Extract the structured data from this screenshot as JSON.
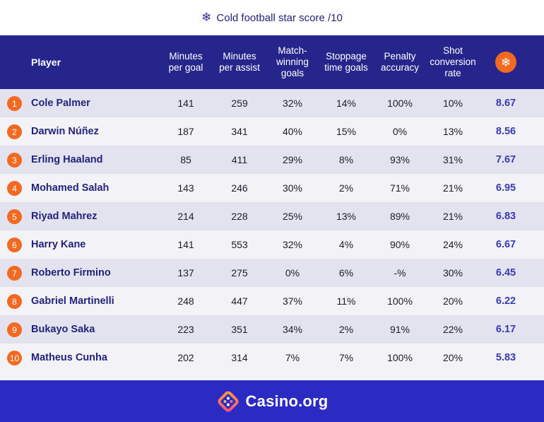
{
  "title": {
    "icon": "snowflake-icon",
    "text": "Cold football star score /10"
  },
  "columns": [
    {
      "key": "player",
      "label": "Player"
    },
    {
      "key": "minutes_per_goal",
      "label": "Minutes per goal"
    },
    {
      "key": "minutes_per_assist",
      "label": "Minutes per assist"
    },
    {
      "key": "match_winning_goals",
      "label": "Match-winning goals"
    },
    {
      "key": "stoppage_time_goals",
      "label": "Stoppage time goals"
    },
    {
      "key": "penalty_accuracy",
      "label": "Penalty accuracy"
    },
    {
      "key": "shot_conversion_rate",
      "label": "Shot conversion rate"
    },
    {
      "key": "score",
      "label": "",
      "icon": "snowflake-icon"
    }
  ],
  "header_labels": {
    "player": "Player",
    "mpg_1": "Minutes",
    "mpg_2": "per goal",
    "mpa_1": "Minutes",
    "mpa_2": "per assist",
    "mwg_1": "Match-",
    "mwg_2": "winning",
    "mwg_3": "goals",
    "stg_1": "Stoppage",
    "stg_2": "time goals",
    "pa_1": "Penalty",
    "pa_2": "accuracy",
    "scr_1": "Shot",
    "scr_2": "conversion",
    "scr_3": "rate",
    "score_icon": "❄"
  },
  "rows": [
    {
      "rank": "1",
      "player": "Cole Palmer",
      "mpg": "141",
      "mpa": "259",
      "mwg": "32%",
      "stg": "14%",
      "pa": "100%",
      "scr": "10%",
      "score": "8.67"
    },
    {
      "rank": "2",
      "player": "Darwin Núñez",
      "mpg": "187",
      "mpa": "341",
      "mwg": "40%",
      "stg": "15%",
      "pa": "0%",
      "scr": "13%",
      "score": "8.56"
    },
    {
      "rank": "3",
      "player": "Erling Haaland",
      "mpg": "85",
      "mpa": "411",
      "mwg": "29%",
      "stg": "8%",
      "pa": "93%",
      "scr": "31%",
      "score": "7.67"
    },
    {
      "rank": "4",
      "player": "Mohamed Salah",
      "mpg": "143",
      "mpa": "246",
      "mwg": "30%",
      "stg": "2%",
      "pa": "71%",
      "scr": "21%",
      "score": "6.95"
    },
    {
      "rank": "5",
      "player": "Riyad Mahrez",
      "mpg": "214",
      "mpa": "228",
      "mwg": "25%",
      "stg": "13%",
      "pa": "89%",
      "scr": "21%",
      "score": "6.83"
    },
    {
      "rank": "6",
      "player": "Harry Kane",
      "mpg": "141",
      "mpa": "553",
      "mwg": "32%",
      "stg": "4%",
      "pa": "90%",
      "scr": "24%",
      "score": "6.67"
    },
    {
      "rank": "7",
      "player": "Roberto Firmino",
      "mpg": "137",
      "mpa": "275",
      "mwg": "0%",
      "stg": "6%",
      "pa": "-%",
      "scr": "30%",
      "score": "6.45"
    },
    {
      "rank": "8",
      "player": "Gabriel Martinelli",
      "mpg": "248",
      "mpa": "447",
      "mwg": "37%",
      "stg": "11%",
      "pa": "100%",
      "scr": "20%",
      "score": "6.22"
    },
    {
      "rank": "9",
      "player": "Bukayo Saka",
      "mpg": "223",
      "mpa": "351",
      "mwg": "34%",
      "stg": "2%",
      "pa": "91%",
      "scr": "22%",
      "score": "6.17"
    },
    {
      "rank": "10",
      "player": "Matheus Cunha",
      "mpg": "202",
      "mpa": "314",
      "mwg": "7%",
      "stg": "7%",
      "pa": "100%",
      "scr": "20%",
      "score": "5.83"
    }
  ],
  "footer": {
    "brand": "Casino.org",
    "logo_icon": "casino-org-logo-icon"
  },
  "colors": {
    "header_bg": "#25258c",
    "footer_bg": "#2b2bc4",
    "accent_orange": "#f26a21",
    "row_odd": "#e3e3f0",
    "row_even": "#f2f2f7",
    "score_text": "#3b3bb0"
  }
}
